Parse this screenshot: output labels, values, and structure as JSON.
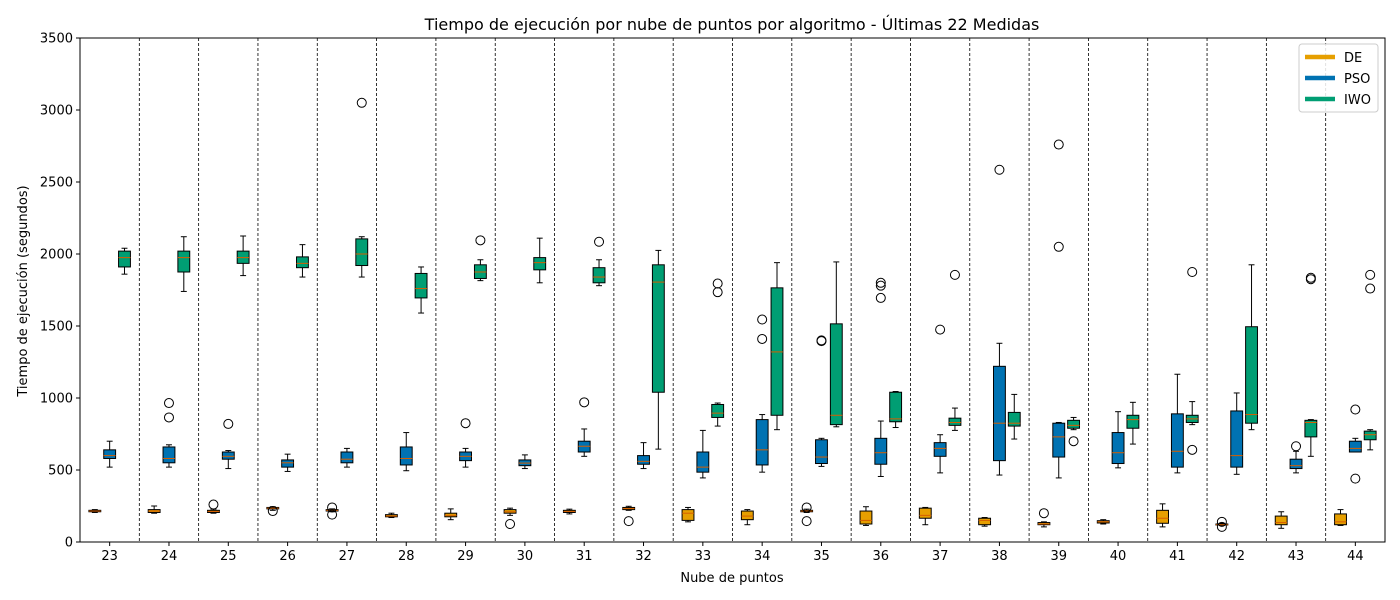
{
  "chart_data": {
    "type": "boxplot",
    "title": "Tiempo de ejecución por nube de puntos por algoritmo - Últimas 22 Medidas",
    "xlabel": "Nube de puntos",
    "ylabel": "Tiempo de ejecución (segundos)",
    "ylim": [
      0,
      3500
    ],
    "y_ticks": [
      0,
      500,
      1000,
      1500,
      2000,
      2500,
      3000,
      3500
    ],
    "categories": [
      "23",
      "24",
      "25",
      "26",
      "27",
      "28",
      "29",
      "30",
      "31",
      "32",
      "33",
      "34",
      "35",
      "36",
      "37",
      "38",
      "39",
      "40",
      "41",
      "42",
      "43",
      "44"
    ],
    "legend_position": "top-right",
    "grid": "vertical dashed separators between groups",
    "series": [
      {
        "name": "DE",
        "color": "#E69F00",
        "median_color": "#D55E00",
        "boxes": [
          {
            "wl": 205,
            "q1": 210,
            "med": 215,
            "q3": 220,
            "wh": 225,
            "out": []
          },
          {
            "wl": 200,
            "q1": 205,
            "med": 215,
            "q3": 225,
            "wh": 250,
            "out": []
          },
          {
            "wl": 200,
            "q1": 205,
            "med": 212,
            "q3": 220,
            "wh": 228,
            "out": [
              260
            ]
          },
          {
            "wl": 220,
            "q1": 230,
            "med": 235,
            "q3": 240,
            "wh": 245,
            "out": [
              215
            ]
          },
          {
            "wl": 210,
            "q1": 215,
            "med": 220,
            "q3": 225,
            "wh": 230,
            "out": [
              190,
              240
            ]
          },
          {
            "wl": 170,
            "q1": 175,
            "med": 180,
            "q3": 190,
            "wh": 200,
            "out": []
          },
          {
            "wl": 155,
            "q1": 175,
            "med": 185,
            "q3": 200,
            "wh": 230,
            "out": []
          },
          {
            "wl": 185,
            "q1": 200,
            "med": 210,
            "q3": 225,
            "wh": 235,
            "out": [
              125
            ]
          },
          {
            "wl": 195,
            "q1": 205,
            "med": 212,
            "q3": 220,
            "wh": 228,
            "out": []
          },
          {
            "wl": 220,
            "q1": 225,
            "med": 232,
            "q3": 240,
            "wh": 248,
            "out": [
              145
            ]
          },
          {
            "wl": 140,
            "q1": 150,
            "med": 200,
            "q3": 225,
            "wh": 240,
            "out": []
          },
          {
            "wl": 120,
            "q1": 155,
            "med": 180,
            "q3": 215,
            "wh": 225,
            "out": []
          },
          {
            "wl": 205,
            "q1": 210,
            "med": 215,
            "q3": 220,
            "wh": 228,
            "out": [
              145,
              240
            ]
          },
          {
            "wl": 115,
            "q1": 125,
            "med": 150,
            "q3": 215,
            "wh": 245,
            "out": []
          },
          {
            "wl": 120,
            "q1": 165,
            "med": 185,
            "q3": 235,
            "wh": 240,
            "out": []
          },
          {
            "wl": 110,
            "q1": 120,
            "med": 150,
            "q3": 165,
            "wh": 170,
            "out": []
          },
          {
            "wl": 105,
            "q1": 120,
            "med": 125,
            "q3": 135,
            "wh": 140,
            "out": [
              200
            ]
          },
          {
            "wl": 125,
            "q1": 132,
            "med": 140,
            "q3": 148,
            "wh": 155,
            "out": []
          },
          {
            "wl": 105,
            "q1": 130,
            "med": 165,
            "q3": 220,
            "wh": 265,
            "out": []
          },
          {
            "wl": 115,
            "q1": 118,
            "med": 120,
            "q3": 125,
            "wh": 130,
            "out": [
              105,
              140
            ]
          },
          {
            "wl": 95,
            "q1": 120,
            "med": 135,
            "q3": 180,
            "wh": 210,
            "out": []
          },
          {
            "wl": 115,
            "q1": 120,
            "med": 140,
            "q3": 195,
            "wh": 225,
            "out": []
          }
        ]
      },
      {
        "name": "PSO",
        "color": "#0072B2",
        "median_color": "#D55E00",
        "boxes": [
          {
            "wl": 520,
            "q1": 580,
            "med": 600,
            "q3": 640,
            "wh": 700,
            "out": []
          },
          {
            "wl": 520,
            "q1": 550,
            "med": 580,
            "q3": 660,
            "wh": 675,
            "out": [
              865,
              965
            ]
          },
          {
            "wl": 510,
            "q1": 575,
            "med": 595,
            "q3": 625,
            "wh": 635,
            "out": [
              820
            ]
          },
          {
            "wl": 490,
            "q1": 520,
            "med": 550,
            "q3": 570,
            "wh": 610,
            "out": []
          },
          {
            "wl": 520,
            "q1": 550,
            "med": 575,
            "q3": 625,
            "wh": 650,
            "out": []
          },
          {
            "wl": 495,
            "q1": 535,
            "med": 580,
            "q3": 660,
            "wh": 760,
            "out": []
          },
          {
            "wl": 520,
            "q1": 565,
            "med": 595,
            "q3": 625,
            "wh": 650,
            "out": [
              825
            ]
          },
          {
            "wl": 510,
            "q1": 530,
            "med": 548,
            "q3": 570,
            "wh": 605,
            "out": []
          },
          {
            "wl": 595,
            "q1": 625,
            "med": 665,
            "q3": 700,
            "wh": 785,
            "out": [
              970
            ]
          },
          {
            "wl": 510,
            "q1": 540,
            "med": 560,
            "q3": 600,
            "wh": 690,
            "out": []
          },
          {
            "wl": 445,
            "q1": 485,
            "med": 520,
            "q3": 625,
            "wh": 775,
            "out": []
          },
          {
            "wl": 485,
            "q1": 535,
            "med": 640,
            "q3": 850,
            "wh": 885,
            "out": [
              1410,
              1545
            ]
          },
          {
            "wl": 525,
            "q1": 545,
            "med": 590,
            "q3": 710,
            "wh": 720,
            "out": [
              1395,
              1400
            ]
          },
          {
            "wl": 455,
            "q1": 540,
            "med": 620,
            "q3": 720,
            "wh": 840,
            "out": [
              1695,
              1780,
              1800
            ]
          },
          {
            "wl": 480,
            "q1": 595,
            "med": 650,
            "q3": 690,
            "wh": 745,
            "out": [
              1475
            ]
          },
          {
            "wl": 465,
            "q1": 565,
            "med": 825,
            "q3": 1220,
            "wh": 1380,
            "out": [
              2585
            ]
          },
          {
            "wl": 445,
            "q1": 590,
            "med": 730,
            "q3": 825,
            "wh": 830,
            "out": [
              2050,
              2760
            ]
          },
          {
            "wl": 515,
            "q1": 545,
            "med": 620,
            "q3": 760,
            "wh": 905,
            "out": []
          },
          {
            "wl": 480,
            "q1": 520,
            "med": 630,
            "q3": 890,
            "wh": 1165,
            "out": []
          },
          {
            "wl": 470,
            "q1": 520,
            "med": 600,
            "q3": 910,
            "wh": 1035,
            "out": []
          },
          {
            "wl": 480,
            "q1": 510,
            "med": 530,
            "q3": 575,
            "wh": 630,
            "out": [
              665
            ]
          },
          {
            "wl": 630,
            "q1": 625,
            "med": 650,
            "q3": 700,
            "wh": 720,
            "out": [
              440,
              920
            ]
          }
        ]
      },
      {
        "name": "IWO",
        "color": "#009E73",
        "median_color": "#D55E00",
        "boxes": [
          {
            "wl": 1860,
            "q1": 1910,
            "med": 1975,
            "q3": 2020,
            "wh": 2040,
            "out": []
          },
          {
            "wl": 1740,
            "q1": 1875,
            "med": 1975,
            "q3": 2020,
            "wh": 2120,
            "out": []
          },
          {
            "wl": 1850,
            "q1": 1935,
            "med": 1975,
            "q3": 2020,
            "wh": 2125,
            "out": []
          },
          {
            "wl": 1840,
            "q1": 1905,
            "med": 1935,
            "q3": 1980,
            "wh": 2065,
            "out": []
          },
          {
            "wl": 1840,
            "q1": 1920,
            "med": 2000,
            "q3": 2105,
            "wh": 2120,
            "out": [
              3050
            ]
          },
          {
            "wl": 1590,
            "q1": 1695,
            "med": 1760,
            "q3": 1865,
            "wh": 1910,
            "out": []
          },
          {
            "wl": 1815,
            "q1": 1830,
            "med": 1875,
            "q3": 1925,
            "wh": 1960,
            "out": [
              2095
            ]
          },
          {
            "wl": 1800,
            "q1": 1890,
            "med": 1940,
            "q3": 1975,
            "wh": 2110,
            "out": []
          },
          {
            "wl": 1780,
            "q1": 1800,
            "med": 1840,
            "q3": 1905,
            "wh": 1960,
            "out": [
              2085
            ]
          },
          {
            "wl": 645,
            "q1": 1040,
            "med": 1805,
            "q3": 1925,
            "wh": 2025,
            "out": []
          },
          {
            "wl": 805,
            "q1": 865,
            "med": 895,
            "q3": 955,
            "wh": 965,
            "out": [
              1735,
              1795
            ]
          },
          {
            "wl": 780,
            "q1": 880,
            "med": 1320,
            "q3": 1765,
            "wh": 1940,
            "out": []
          },
          {
            "wl": 800,
            "q1": 815,
            "med": 880,
            "q3": 1515,
            "wh": 1945,
            "out": []
          },
          {
            "wl": 795,
            "q1": 835,
            "med": 855,
            "q3": 1040,
            "wh": 1045,
            "out": []
          },
          {
            "wl": 775,
            "q1": 810,
            "med": 830,
            "q3": 860,
            "wh": 930,
            "out": [
              1855
            ]
          },
          {
            "wl": 715,
            "q1": 805,
            "med": 825,
            "q3": 900,
            "wh": 1025,
            "out": []
          },
          {
            "wl": 780,
            "q1": 790,
            "med": 810,
            "q3": 845,
            "wh": 865,
            "out": [
              700
            ]
          },
          {
            "wl": 680,
            "q1": 790,
            "med": 850,
            "q3": 880,
            "wh": 970,
            "out": []
          },
          {
            "wl": 815,
            "q1": 830,
            "med": 855,
            "q3": 880,
            "wh": 975,
            "out": [
              640,
              1875
            ]
          },
          {
            "wl": 780,
            "q1": 825,
            "med": 885,
            "q3": 1495,
            "wh": 1925,
            "out": []
          },
          {
            "wl": 595,
            "q1": 730,
            "med": 830,
            "q3": 845,
            "wh": 850,
            "out": [
              1825,
              1835
            ]
          },
          {
            "wl": 640,
            "q1": 710,
            "med": 745,
            "q3": 770,
            "wh": 780,
            "out": [
              1760,
              1855
            ]
          }
        ]
      }
    ]
  }
}
